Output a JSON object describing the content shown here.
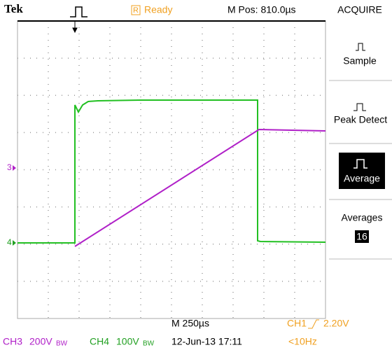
{
  "header": {
    "brand": "Tek",
    "status_icon": "R",
    "status": "Ready",
    "position": "M Pos: 810.0µs"
  },
  "menu": {
    "title": "ACQUIRE",
    "items": [
      {
        "label": "Sample"
      },
      {
        "label": "Peak Detect"
      },
      {
        "label": "Average"
      },
      {
        "label": "Averages",
        "value": "16"
      }
    ]
  },
  "markers": [
    "3",
    "4"
  ],
  "footer": {
    "timebase": "M 250µs",
    "trigger_channel": "CH1",
    "trigger_level": "2.20V",
    "channels": [
      {
        "name": "CH3",
        "scale": "200V",
        "bw": "BW"
      },
      {
        "name": "CH4",
        "scale": "100V",
        "bw": "BW"
      }
    ],
    "datetime": "12-Jun-13 17:11",
    "frequency": "<10Hz"
  }
}
